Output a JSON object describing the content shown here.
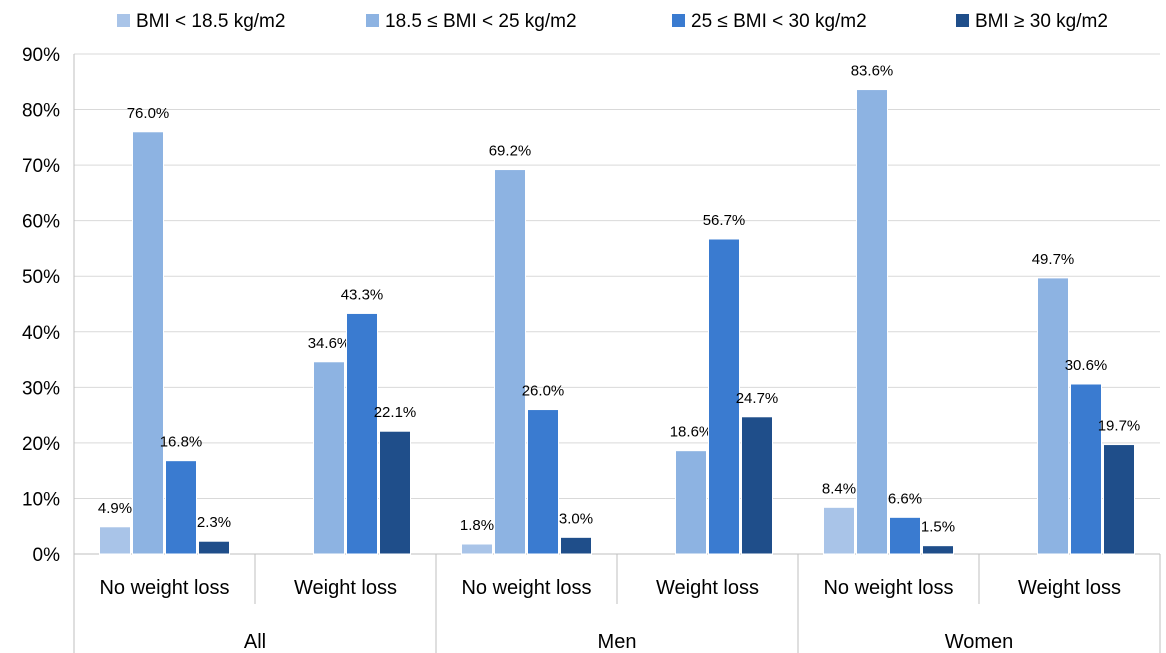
{
  "chart_data": {
    "type": "bar",
    "groups": [
      "All",
      "Men",
      "Women"
    ],
    "subcategories": [
      "No weight loss",
      "Weight loss"
    ],
    "series": [
      {
        "name": "BMI < 18.5 kg/m2",
        "color": "#a9c4e8",
        "values": [
          4.9,
          null,
          1.8,
          null,
          8.4,
          null
        ],
        "labels": [
          "4.9%",
          "",
          "1.8%",
          "",
          "8.4%",
          ""
        ]
      },
      {
        "name": "18.5 ≤ BMI < 25 kg/m2",
        "color": "#8db3e2",
        "values": [
          76.0,
          34.6,
          69.2,
          18.6,
          83.6,
          49.7
        ],
        "labels": [
          "76.0%",
          "34.6%",
          "69.2%",
          "18.6%",
          "83.6%",
          "49.7%"
        ]
      },
      {
        "name": "25 ≤ BMI < 30 kg/m2",
        "color": "#3a7bd0",
        "values": [
          16.8,
          43.3,
          26.0,
          56.7,
          6.6,
          30.6
        ],
        "labels": [
          "16.8%",
          "43.3%",
          "26.0%",
          "56.7%",
          "6.6%",
          "30.6%"
        ]
      },
      {
        "name": "BMI ≥ 30 kg/m2",
        "color": "#1f4e8a",
        "values": [
          2.3,
          22.1,
          3.0,
          24.7,
          1.5,
          19.7
        ],
        "labels": [
          "2.3%",
          "22.1%",
          "3.0%",
          "24.7%",
          "1.5%",
          "19.7%"
        ]
      }
    ],
    "ylim": [
      0,
      90
    ],
    "ytick_labels": [
      "0%",
      "10%",
      "20%",
      "30%",
      "40%",
      "50%",
      "60%",
      "70%",
      "80%",
      "90%"
    ],
    "grid": true,
    "legend": "top"
  }
}
